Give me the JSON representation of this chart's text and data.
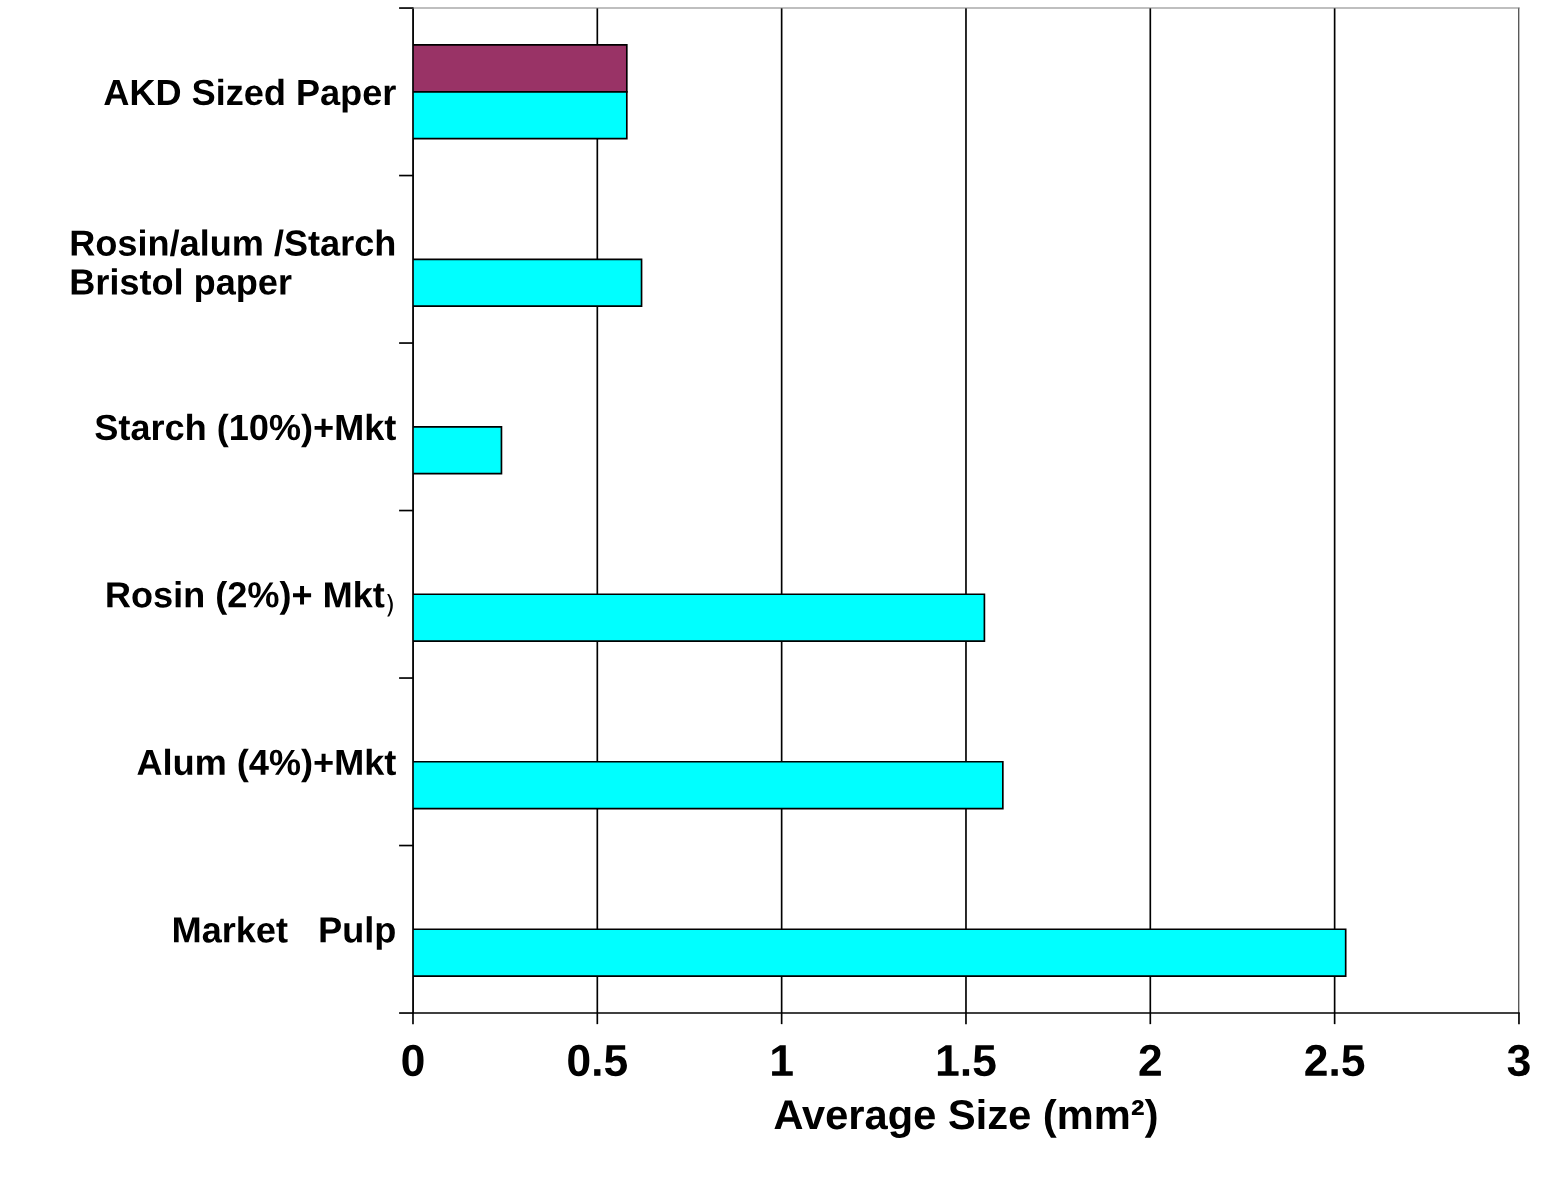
{
  "chart_data": {
    "type": "bar",
    "orientation": "horizontal",
    "xlabel": "Average Size (mm²)",
    "categories": [
      "AKD Sized Paper",
      "Rosin/alum /Starch\nBristol paper",
      "Starch (10%)+Mkt",
      "Rosin (2%)+ Mkt$_{)}$",
      "Alum (4%)+Mkt",
      "Market   Pulp"
    ],
    "series": [
      {
        "color": "#993366",
        "values": [
          0.58,
          null,
          null,
          null,
          null,
          null
        ]
      },
      {
        "color": "#00ffff",
        "values": [
          0.58,
          0.62,
          0.24,
          1.55,
          1.6,
          2.53
        ]
      }
    ],
    "xlim": [
      0,
      3
    ],
    "xticks": [
      0,
      0.5,
      1,
      1.5,
      2,
      2.5,
      3
    ],
    "grid": "x"
  }
}
